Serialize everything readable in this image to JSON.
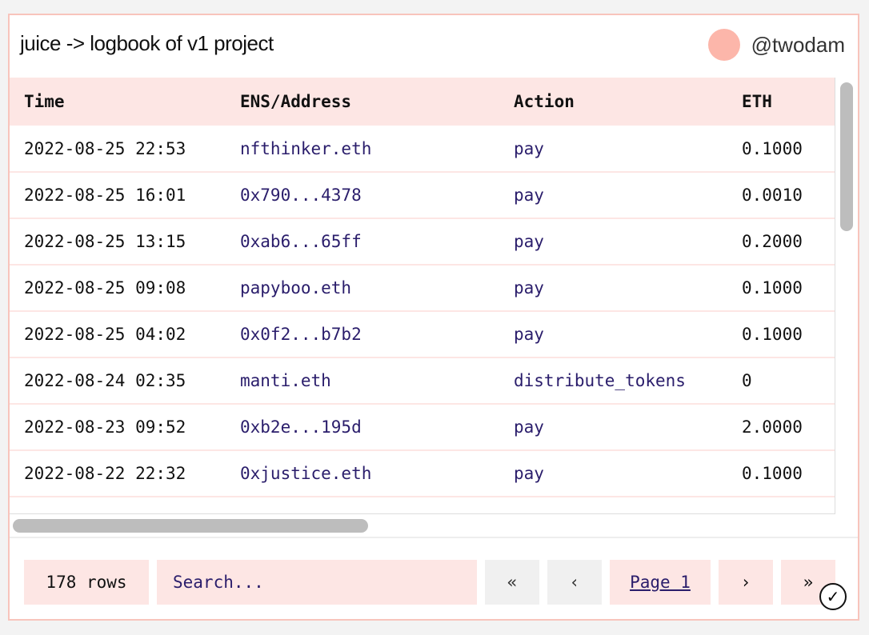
{
  "header": {
    "title": "juice -> logbook of v1 project",
    "username": "@twodam",
    "avatar_color": "#fcb6aa"
  },
  "table": {
    "columns": [
      "Time",
      "ENS/Address",
      "Action",
      "ETH"
    ],
    "rows": [
      [
        "2022-08-25 22:53",
        "nfthinker.eth",
        "pay",
        "0.1000"
      ],
      [
        "2022-08-25 16:01",
        "0x790...4378",
        "pay",
        "0.0010"
      ],
      [
        "2022-08-25 13:15",
        "0xab6...65ff",
        "pay",
        "0.2000"
      ],
      [
        "2022-08-25 09:08",
        "papyboo.eth",
        "pay",
        "0.1000"
      ],
      [
        "2022-08-25 04:02",
        "0x0f2...b7b2",
        "pay",
        "0.1000"
      ],
      [
        "2022-08-24 02:35",
        "manti.eth",
        "distribute_tokens",
        "0"
      ],
      [
        "2022-08-23 09:52",
        "0xb2e...195d",
        "pay",
        "2.0000"
      ],
      [
        "2022-08-22 22:32",
        "0xjustice.eth",
        "pay",
        "0.1000"
      ]
    ]
  },
  "footer": {
    "row_count": "178 rows",
    "search_placeholder": "Search...",
    "first": "«",
    "prev": "‹",
    "page": "Page 1",
    "next": "›",
    "last": "»"
  },
  "colors": {
    "accent": "#fde6e4",
    "border": "#f8c4bc",
    "link": "#2a1d6b"
  }
}
